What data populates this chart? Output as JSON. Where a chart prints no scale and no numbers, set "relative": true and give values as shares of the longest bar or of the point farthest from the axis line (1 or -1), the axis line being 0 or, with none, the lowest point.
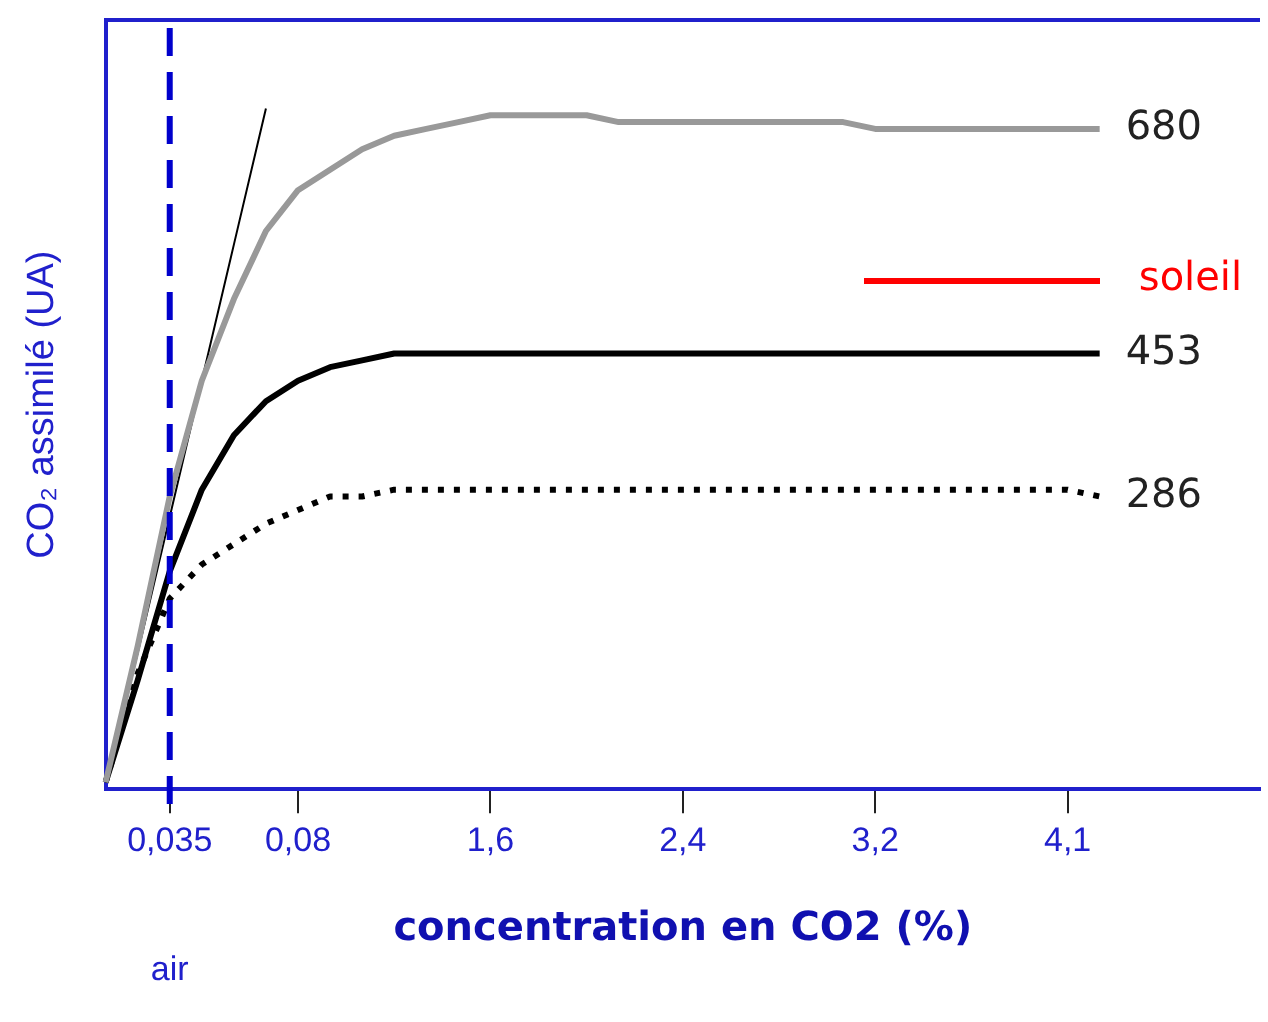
{
  "chart_data": {
    "type": "line",
    "relative": true,
    "xlabel": "concentration en CO2 (%)",
    "ylabel": "CO₂ assimilé (UA)",
    "categories": [
      null,
      null,
      "0,035",
      null,
      null,
      null,
      "0,08",
      null,
      null,
      null,
      null,
      null,
      "1,6",
      null,
      null,
      null,
      null,
      null,
      "2,4",
      null,
      null,
      null,
      null,
      null,
      "3,2",
      null,
      null,
      null,
      null,
      null,
      "4,1",
      null,
      null,
      null,
      null,
      null,
      null
    ],
    "series": [
      {
        "name": "680",
        "color": "#999999",
        "values": [
          0.01,
          0.21,
          0.43,
          0.6,
          0.72,
          0.82,
          0.88,
          0.91,
          0.94,
          0.96,
          0.97,
          0.98,
          0.99,
          0.99,
          0.99,
          0.99,
          0.98,
          0.98,
          0.98,
          0.98,
          0.98,
          0.98,
          0.98,
          0.98,
          0.97,
          0.97,
          0.97,
          0.97,
          0.97,
          0.97,
          0.97,
          0.97,
          null,
          null,
          null,
          null,
          null
        ]
      },
      {
        "name": "453",
        "color": "#000000",
        "values": [
          0.01,
          0.16,
          0.32,
          0.44,
          0.52,
          0.57,
          0.6,
          0.62,
          0.63,
          0.64,
          0.64,
          0.64,
          0.64,
          0.64,
          0.64,
          0.64,
          0.64,
          0.64,
          0.64,
          0.64,
          0.64,
          0.64,
          0.64,
          0.64,
          0.64,
          0.64,
          0.64,
          0.64,
          0.64,
          0.64,
          0.64,
          0.64,
          null,
          null,
          null,
          null,
          null
        ]
      },
      {
        "name": "286",
        "color": "#000000",
        "line_style": "dotted",
        "values": [
          0.01,
          0.17,
          0.28,
          0.33,
          0.36,
          0.39,
          0.41,
          0.43,
          0.43,
          0.44,
          0.44,
          0.44,
          0.44,
          0.44,
          0.44,
          0.44,
          0.44,
          0.44,
          0.44,
          0.44,
          0.44,
          0.44,
          0.44,
          0.44,
          0.44,
          0.44,
          0.44,
          0.44,
          0.44,
          0.44,
          0.44,
          0.43,
          null,
          null,
          null,
          null,
          null
        ]
      },
      {
        "color": "#000000",
        "values": [
          0.01,
          0.2,
          0.4,
          0.6,
          0.8,
          1,
          null,
          null,
          null,
          null,
          null,
          null,
          null,
          null,
          null,
          null,
          null,
          null,
          null,
          null,
          null,
          null,
          null,
          null,
          null,
          null,
          null,
          null,
          null,
          null,
          null,
          null,
          null,
          null,
          null,
          null,
          null
        ]
      }
    ],
    "ref_lines": [
      {
        "axis": "x",
        "value": "0,035",
        "label": "air",
        "color": "#0000cc",
        "line_style": "dashed"
      }
    ],
    "annotations": [
      "soleil"
    ],
    "legend": false,
    "grid": false,
    "marker": "none",
    "line_style": "solid"
  }
}
